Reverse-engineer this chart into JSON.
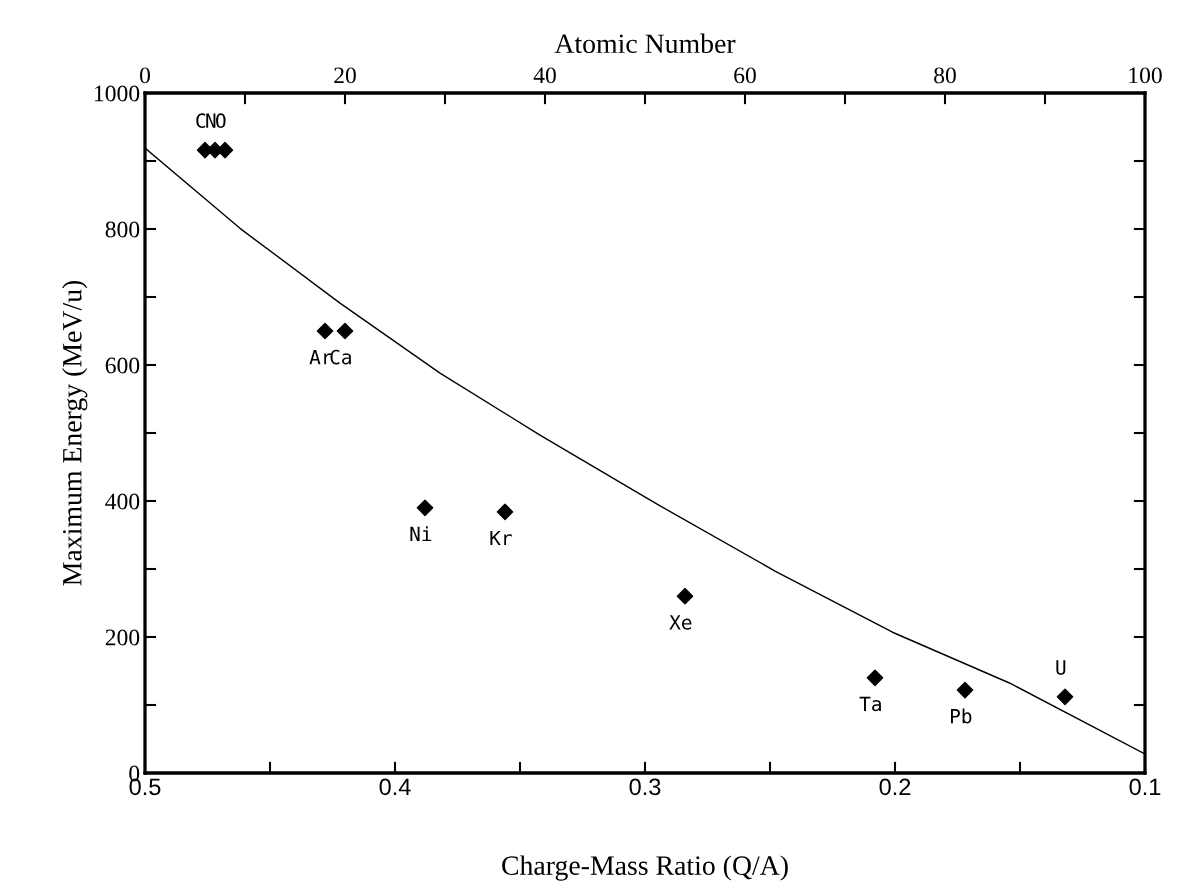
{
  "chart_data": {
    "type": "scatter",
    "xlabel": "Charge-Mass Ratio (Q/A)",
    "ylabel": "Maximum Energy (MeV/u)",
    "x2label": "Atomic Number",
    "xlim": [
      0.5,
      0.1
    ],
    "xticks": [
      0.5,
      {
        "value": 0.45,
        "label": null
      },
      0.4,
      {
        "value": 0.35,
        "label": null
      },
      0.3,
      {
        "value": 0.25,
        "label": null
      },
      0.2,
      {
        "value": 0.15,
        "label": null
      },
      0.1
    ],
    "x2lim": [
      0,
      100
    ],
    "x2ticks": [
      0,
      {
        "value": 10,
        "label": null
      },
      20,
      {
        "value": 30,
        "label": null
      },
      40,
      {
        "value": 50,
        "label": null
      },
      60,
      {
        "value": 70,
        "label": null
      },
      80,
      {
        "value": 90,
        "label": null
      },
      100
    ],
    "ylim": [
      0,
      1000
    ],
    "yticks": [
      0,
      {
        "value": 100,
        "label": null
      },
      200,
      {
        "value": 300,
        "label": null
      },
      400,
      {
        "value": 500,
        "label": null
      },
      600,
      {
        "value": 700,
        "label": null
      },
      800,
      {
        "value": 900,
        "label": null
      },
      1000
    ],
    "grid": false,
    "legend": false,
    "marker": "diamond",
    "series": [
      {
        "type": "line",
        "color": "#000000",
        "marker": "none",
        "line_style": "solid",
        "x": [
          0.5,
          0.462,
          0.422,
          0.382,
          0.342,
          0.295,
          0.248,
          0.201,
          0.154,
          0.1
        ],
        "values": [
          919,
          801,
          691,
          588,
          497,
          395,
          297,
          207,
          132,
          28
        ]
      },
      {
        "name": "C",
        "axis": "x2",
        "color": "#000000",
        "x": [
          6
        ],
        "values": [
          916
        ]
      },
      {
        "name": "N",
        "axis": "x2",
        "color": "#000000",
        "x": [
          7
        ],
        "values": [
          916
        ]
      },
      {
        "name": "O",
        "axis": "x2",
        "color": "#000000",
        "x": [
          8
        ],
        "values": [
          916
        ]
      },
      {
        "name": "Ar",
        "axis": "x2",
        "color": "#000000",
        "x": [
          18
        ],
        "values": [
          650
        ]
      },
      {
        "name": "Ca",
        "axis": "x2",
        "color": "#000000",
        "x": [
          20
        ],
        "values": [
          650
        ]
      },
      {
        "name": "Ni",
        "axis": "x2",
        "color": "#000000",
        "x": [
          28
        ],
        "values": [
          390
        ]
      },
      {
        "name": "Kr",
        "axis": "x2",
        "color": "#000000",
        "x": [
          36
        ],
        "values": [
          384
        ]
      },
      {
        "name": "Xe",
        "axis": "x2",
        "color": "#000000",
        "x": [
          54
        ],
        "values": [
          260
        ]
      },
      {
        "name": "Ta",
        "axis": "x2",
        "color": "#000000",
        "x": [
          73
        ],
        "values": [
          140
        ]
      },
      {
        "name": "Pb",
        "axis": "x2",
        "color": "#000000",
        "x": [
          82
        ],
        "values": [
          122
        ]
      },
      {
        "name": "U",
        "axis": "x2",
        "color": "#000000",
        "x": [
          92
        ],
        "values": [
          112
        ]
      }
    ]
  }
}
